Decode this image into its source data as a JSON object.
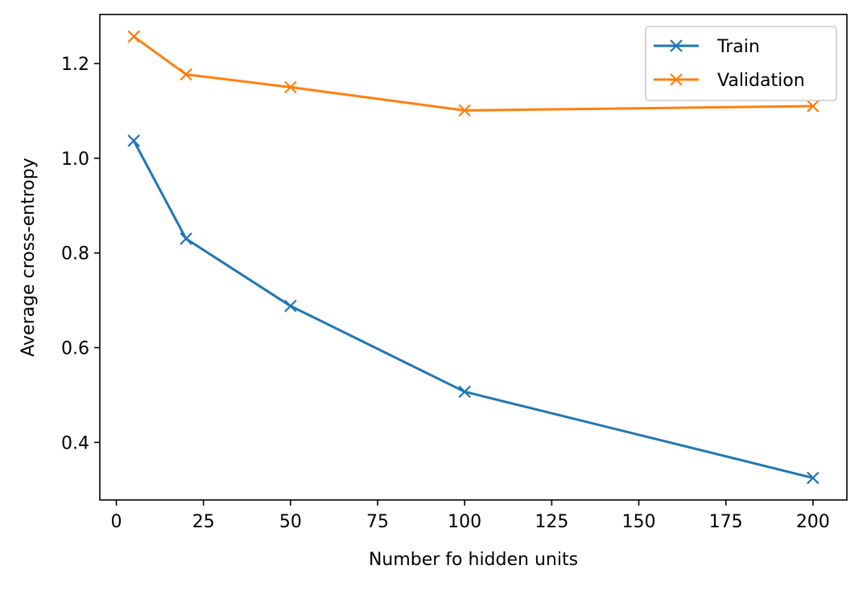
{
  "chart_data": {
    "type": "line",
    "title": "",
    "xlabel": "Number fo hidden units",
    "ylabel": "Average cross-entropy",
    "x": [
      5,
      20,
      50,
      100,
      200
    ],
    "series": [
      {
        "name": "Train",
        "color": "#1f77b4",
        "marker": "x",
        "values": [
          1.037,
          0.83,
          0.688,
          0.507,
          0.325
        ]
      },
      {
        "name": "Validation",
        "color": "#ff7f0e",
        "marker": "x",
        "values": [
          1.257,
          1.177,
          1.15,
          1.101,
          1.11
        ]
      }
    ],
    "xticks": [
      0,
      25,
      50,
      75,
      100,
      125,
      150,
      175,
      200
    ],
    "xtick_labels": [
      "0",
      "25",
      "50",
      "75",
      "100",
      "125",
      "150",
      "175",
      "200"
    ],
    "yticks": [
      0.4,
      0.6,
      0.8,
      1.0,
      1.2
    ],
    "ytick_labels": [
      "0.4",
      "0.6",
      "0.8",
      "1.0",
      "1.2"
    ],
    "xlim": [
      -4.75,
      209.75
    ],
    "ylim": [
      0.2784,
      1.3036
    ],
    "grid": false,
    "legend_position": "upper right"
  }
}
